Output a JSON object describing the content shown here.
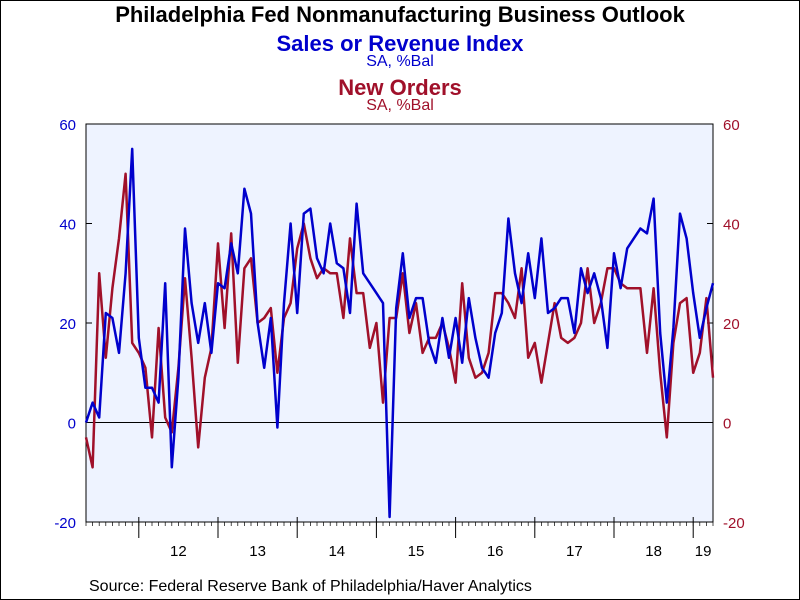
{
  "header": {
    "title": "Philadelphia Fed Nonmanufacturing Business Outlook",
    "series1_title": "Sales or Revenue Index",
    "series1_unit": "SA, %Bal",
    "series2_title": "New Orders",
    "series2_unit": "SA, %Bal"
  },
  "footer": {
    "source": "Source:  Federal Reserve Bank of Philadelphia/Haver Analytics"
  },
  "colors": {
    "series1": "#0000cc",
    "series2": "#a0102a",
    "plot_bg": "#eef3ff"
  },
  "chart_data": {
    "type": "line",
    "ylim": [
      -20,
      60
    ],
    "yticks": [
      -20,
      0,
      20,
      40,
      60
    ],
    "x_range": [
      "2011-05",
      "2019-04"
    ],
    "x_tick_labels": [
      "12",
      "13",
      "14",
      "15",
      "16",
      "17",
      "18",
      "19"
    ],
    "grid": false,
    "legend": "none",
    "series": [
      {
        "name": "Sales or Revenue Index",
        "axis": "left",
        "values": [
          [
            "2011-05",
            0
          ],
          [
            "2011-06",
            4
          ],
          [
            "2011-07",
            1
          ],
          [
            "2011-08",
            22
          ],
          [
            "2011-09",
            21
          ],
          [
            "2011-10",
            14
          ],
          [
            "2011-11",
            30
          ],
          [
            "2011-12",
            55
          ],
          [
            "2012-01",
            17
          ],
          [
            "2012-02",
            7
          ],
          [
            "2012-03",
            7
          ],
          [
            "2012-04",
            4
          ],
          [
            "2012-05",
            28
          ],
          [
            "2012-06",
            -9
          ],
          [
            "2012-07",
            9
          ],
          [
            "2012-08",
            39
          ],
          [
            "2012-09",
            24
          ],
          [
            "2012-10",
            16
          ],
          [
            "2012-11",
            24
          ],
          [
            "2012-12",
            14
          ],
          [
            "2013-01",
            28
          ],
          [
            "2013-02",
            27
          ],
          [
            "2013-03",
            36
          ],
          [
            "2013-04",
            30
          ],
          [
            "2013-05",
            47
          ],
          [
            "2013-06",
            42
          ],
          [
            "2013-07",
            20
          ],
          [
            "2013-08",
            11
          ],
          [
            "2013-09",
            21
          ],
          [
            "2013-10",
            -1
          ],
          [
            "2013-11",
            24
          ],
          [
            "2013-12",
            40
          ],
          [
            "2014-01",
            22
          ],
          [
            "2014-02",
            42
          ],
          [
            "2014-03",
            43
          ],
          [
            "2014-04",
            33
          ],
          [
            "2014-05",
            30
          ],
          [
            "2014-06",
            40
          ],
          [
            "2014-07",
            32
          ],
          [
            "2014-08",
            31
          ],
          [
            "2014-09",
            22
          ],
          [
            "2014-10",
            44
          ],
          [
            "2014-11",
            30
          ],
          [
            "2014-12",
            28
          ],
          [
            "2015-01",
            26
          ],
          [
            "2015-02",
            24
          ],
          [
            "2015-03",
            -19
          ],
          [
            "2015-04",
            23
          ],
          [
            "2015-05",
            34
          ],
          [
            "2015-06",
            21
          ],
          [
            "2015-07",
            25
          ],
          [
            "2015-08",
            25
          ],
          [
            "2015-09",
            16
          ],
          [
            "2015-10",
            12
          ],
          [
            "2015-11",
            21
          ],
          [
            "2015-12",
            13
          ],
          [
            "2016-01",
            21
          ],
          [
            "2016-02",
            12
          ],
          [
            "2016-03",
            25
          ],
          [
            "2016-04",
            17
          ],
          [
            "2016-05",
            11
          ],
          [
            "2016-06",
            9
          ],
          [
            "2016-07",
            18
          ],
          [
            "2016-08",
            22
          ],
          [
            "2016-09",
            41
          ],
          [
            "2016-10",
            30
          ],
          [
            "2016-11",
            24
          ],
          [
            "2016-12",
            34
          ],
          [
            "2017-01",
            25
          ],
          [
            "2017-02",
            37
          ],
          [
            "2017-03",
            22
          ],
          [
            "2017-04",
            23
          ],
          [
            "2017-05",
            25
          ],
          [
            "2017-06",
            25
          ],
          [
            "2017-07",
            18
          ],
          [
            "2017-08",
            31
          ],
          [
            "2017-09",
            26
          ],
          [
            "2017-10",
            30
          ],
          [
            "2017-11",
            25
          ],
          [
            "2017-12",
            15
          ],
          [
            "2018-01",
            34
          ],
          [
            "2018-02",
            27
          ],
          [
            "2018-03",
            35
          ],
          [
            "2018-04",
            37
          ],
          [
            "2018-05",
            39
          ],
          [
            "2018-06",
            38
          ],
          [
            "2018-07",
            45
          ],
          [
            "2018-08",
            18
          ],
          [
            "2018-09",
            4
          ],
          [
            "2018-10",
            19
          ],
          [
            "2018-11",
            42
          ],
          [
            "2018-12",
            37
          ],
          [
            "2019-01",
            26
          ],
          [
            "2019-02",
            17
          ],
          [
            "2019-03",
            23
          ],
          [
            "2019-04",
            28
          ]
        ]
      },
      {
        "name": "New Orders",
        "axis": "right",
        "values": [
          [
            "2011-05",
            -3
          ],
          [
            "2011-06",
            -9
          ],
          [
            "2011-07",
            30
          ],
          [
            "2011-08",
            13
          ],
          [
            "2011-09",
            27
          ],
          [
            "2011-10",
            37
          ],
          [
            "2011-11",
            50
          ],
          [
            "2011-12",
            16
          ],
          [
            "2012-01",
            14
          ],
          [
            "2012-02",
            11
          ],
          [
            "2012-03",
            -3
          ],
          [
            "2012-04",
            19
          ],
          [
            "2012-05",
            1
          ],
          [
            "2012-06",
            -2
          ],
          [
            "2012-07",
            11
          ],
          [
            "2012-08",
            29
          ],
          [
            "2012-09",
            13
          ],
          [
            "2012-10",
            -5
          ],
          [
            "2012-11",
            9
          ],
          [
            "2012-12",
            15
          ],
          [
            "2013-01",
            36
          ],
          [
            "2013-02",
            19
          ],
          [
            "2013-03",
            38
          ],
          [
            "2013-04",
            12
          ],
          [
            "2013-05",
            31
          ],
          [
            "2013-06",
            33
          ],
          [
            "2013-07",
            20
          ],
          [
            "2013-08",
            21
          ],
          [
            "2013-09",
            23
          ],
          [
            "2013-10",
            10
          ],
          [
            "2013-11",
            21
          ],
          [
            "2013-12",
            24
          ],
          [
            "2014-01",
            35
          ],
          [
            "2014-02",
            40
          ],
          [
            "2014-03",
            33
          ],
          [
            "2014-04",
            29
          ],
          [
            "2014-05",
            31
          ],
          [
            "2014-06",
            30
          ],
          [
            "2014-07",
            30
          ],
          [
            "2014-08",
            21
          ],
          [
            "2014-09",
            37
          ],
          [
            "2014-10",
            26
          ],
          [
            "2014-11",
            26
          ],
          [
            "2014-12",
            15
          ],
          [
            "2015-01",
            20
          ],
          [
            "2015-02",
            4
          ],
          [
            "2015-03",
            21
          ],
          [
            "2015-04",
            21
          ],
          [
            "2015-05",
            30
          ],
          [
            "2015-06",
            18
          ],
          [
            "2015-07",
            24
          ],
          [
            "2015-08",
            14
          ],
          [
            "2015-09",
            17
          ],
          [
            "2015-10",
            17
          ],
          [
            "2015-11",
            20
          ],
          [
            "2015-12",
            15
          ],
          [
            "2016-01",
            8
          ],
          [
            "2016-02",
            28
          ],
          [
            "2016-03",
            13
          ],
          [
            "2016-04",
            9
          ],
          [
            "2016-05",
            10
          ],
          [
            "2016-06",
            14
          ],
          [
            "2016-07",
            26
          ],
          [
            "2016-08",
            26
          ],
          [
            "2016-09",
            24
          ],
          [
            "2016-10",
            21
          ],
          [
            "2016-11",
            31
          ],
          [
            "2016-12",
            13
          ],
          [
            "2017-01",
            16
          ],
          [
            "2017-02",
            8
          ],
          [
            "2017-03",
            16
          ],
          [
            "2017-04",
            24
          ],
          [
            "2017-05",
            17
          ],
          [
            "2017-06",
            16
          ],
          [
            "2017-07",
            17
          ],
          [
            "2017-08",
            20
          ],
          [
            "2017-09",
            31
          ],
          [
            "2017-10",
            20
          ],
          [
            "2017-11",
            24
          ],
          [
            "2017-12",
            31
          ],
          [
            "2018-01",
            31
          ],
          [
            "2018-02",
            28
          ],
          [
            "2018-03",
            27
          ],
          [
            "2018-04",
            27
          ],
          [
            "2018-05",
            27
          ],
          [
            "2018-06",
            14
          ],
          [
            "2018-07",
            27
          ],
          [
            "2018-08",
            10
          ],
          [
            "2018-09",
            -3
          ],
          [
            "2018-10",
            16
          ],
          [
            "2018-11",
            24
          ],
          [
            "2018-12",
            25
          ],
          [
            "2019-01",
            10
          ],
          [
            "2019-02",
            14
          ],
          [
            "2019-03",
            25
          ],
          [
            "2019-04",
            9
          ]
        ]
      }
    ]
  }
}
